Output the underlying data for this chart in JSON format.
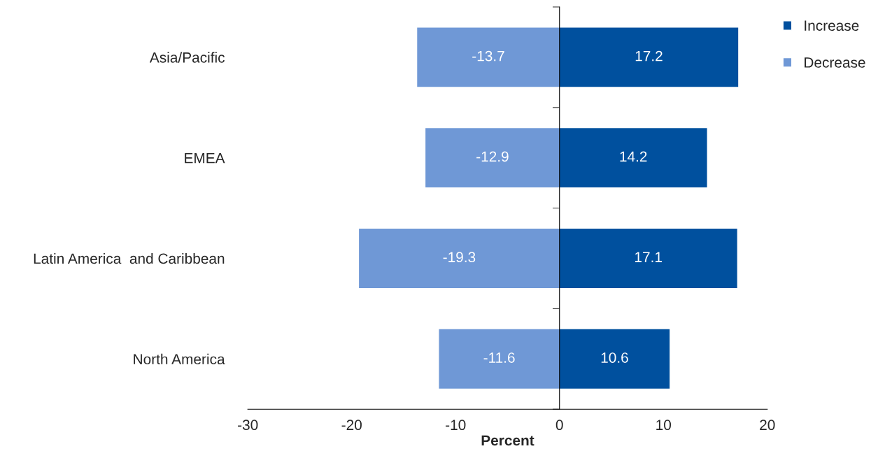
{
  "chart_data": {
    "type": "bar",
    "orientation": "horizontal",
    "stacked": true,
    "xlabel": "Percent",
    "categories": [
      "Asia/Pacific",
      "EMEA",
      "Latin America  and Caribbean",
      "North America"
    ],
    "series": [
      {
        "name": "Increase",
        "color": "#00509e",
        "values": [
          17.2,
          14.2,
          17.1,
          10.6
        ]
      },
      {
        "name": "Decrease",
        "color": "#6f98d6",
        "values": [
          -13.7,
          -12.9,
          -19.3,
          -11.6
        ]
      }
    ],
    "xlim": [
      -30,
      20
    ],
    "xticks": [
      -30,
      -20,
      -10,
      0,
      10,
      20
    ],
    "data_labels": true,
    "legend": "top right"
  }
}
